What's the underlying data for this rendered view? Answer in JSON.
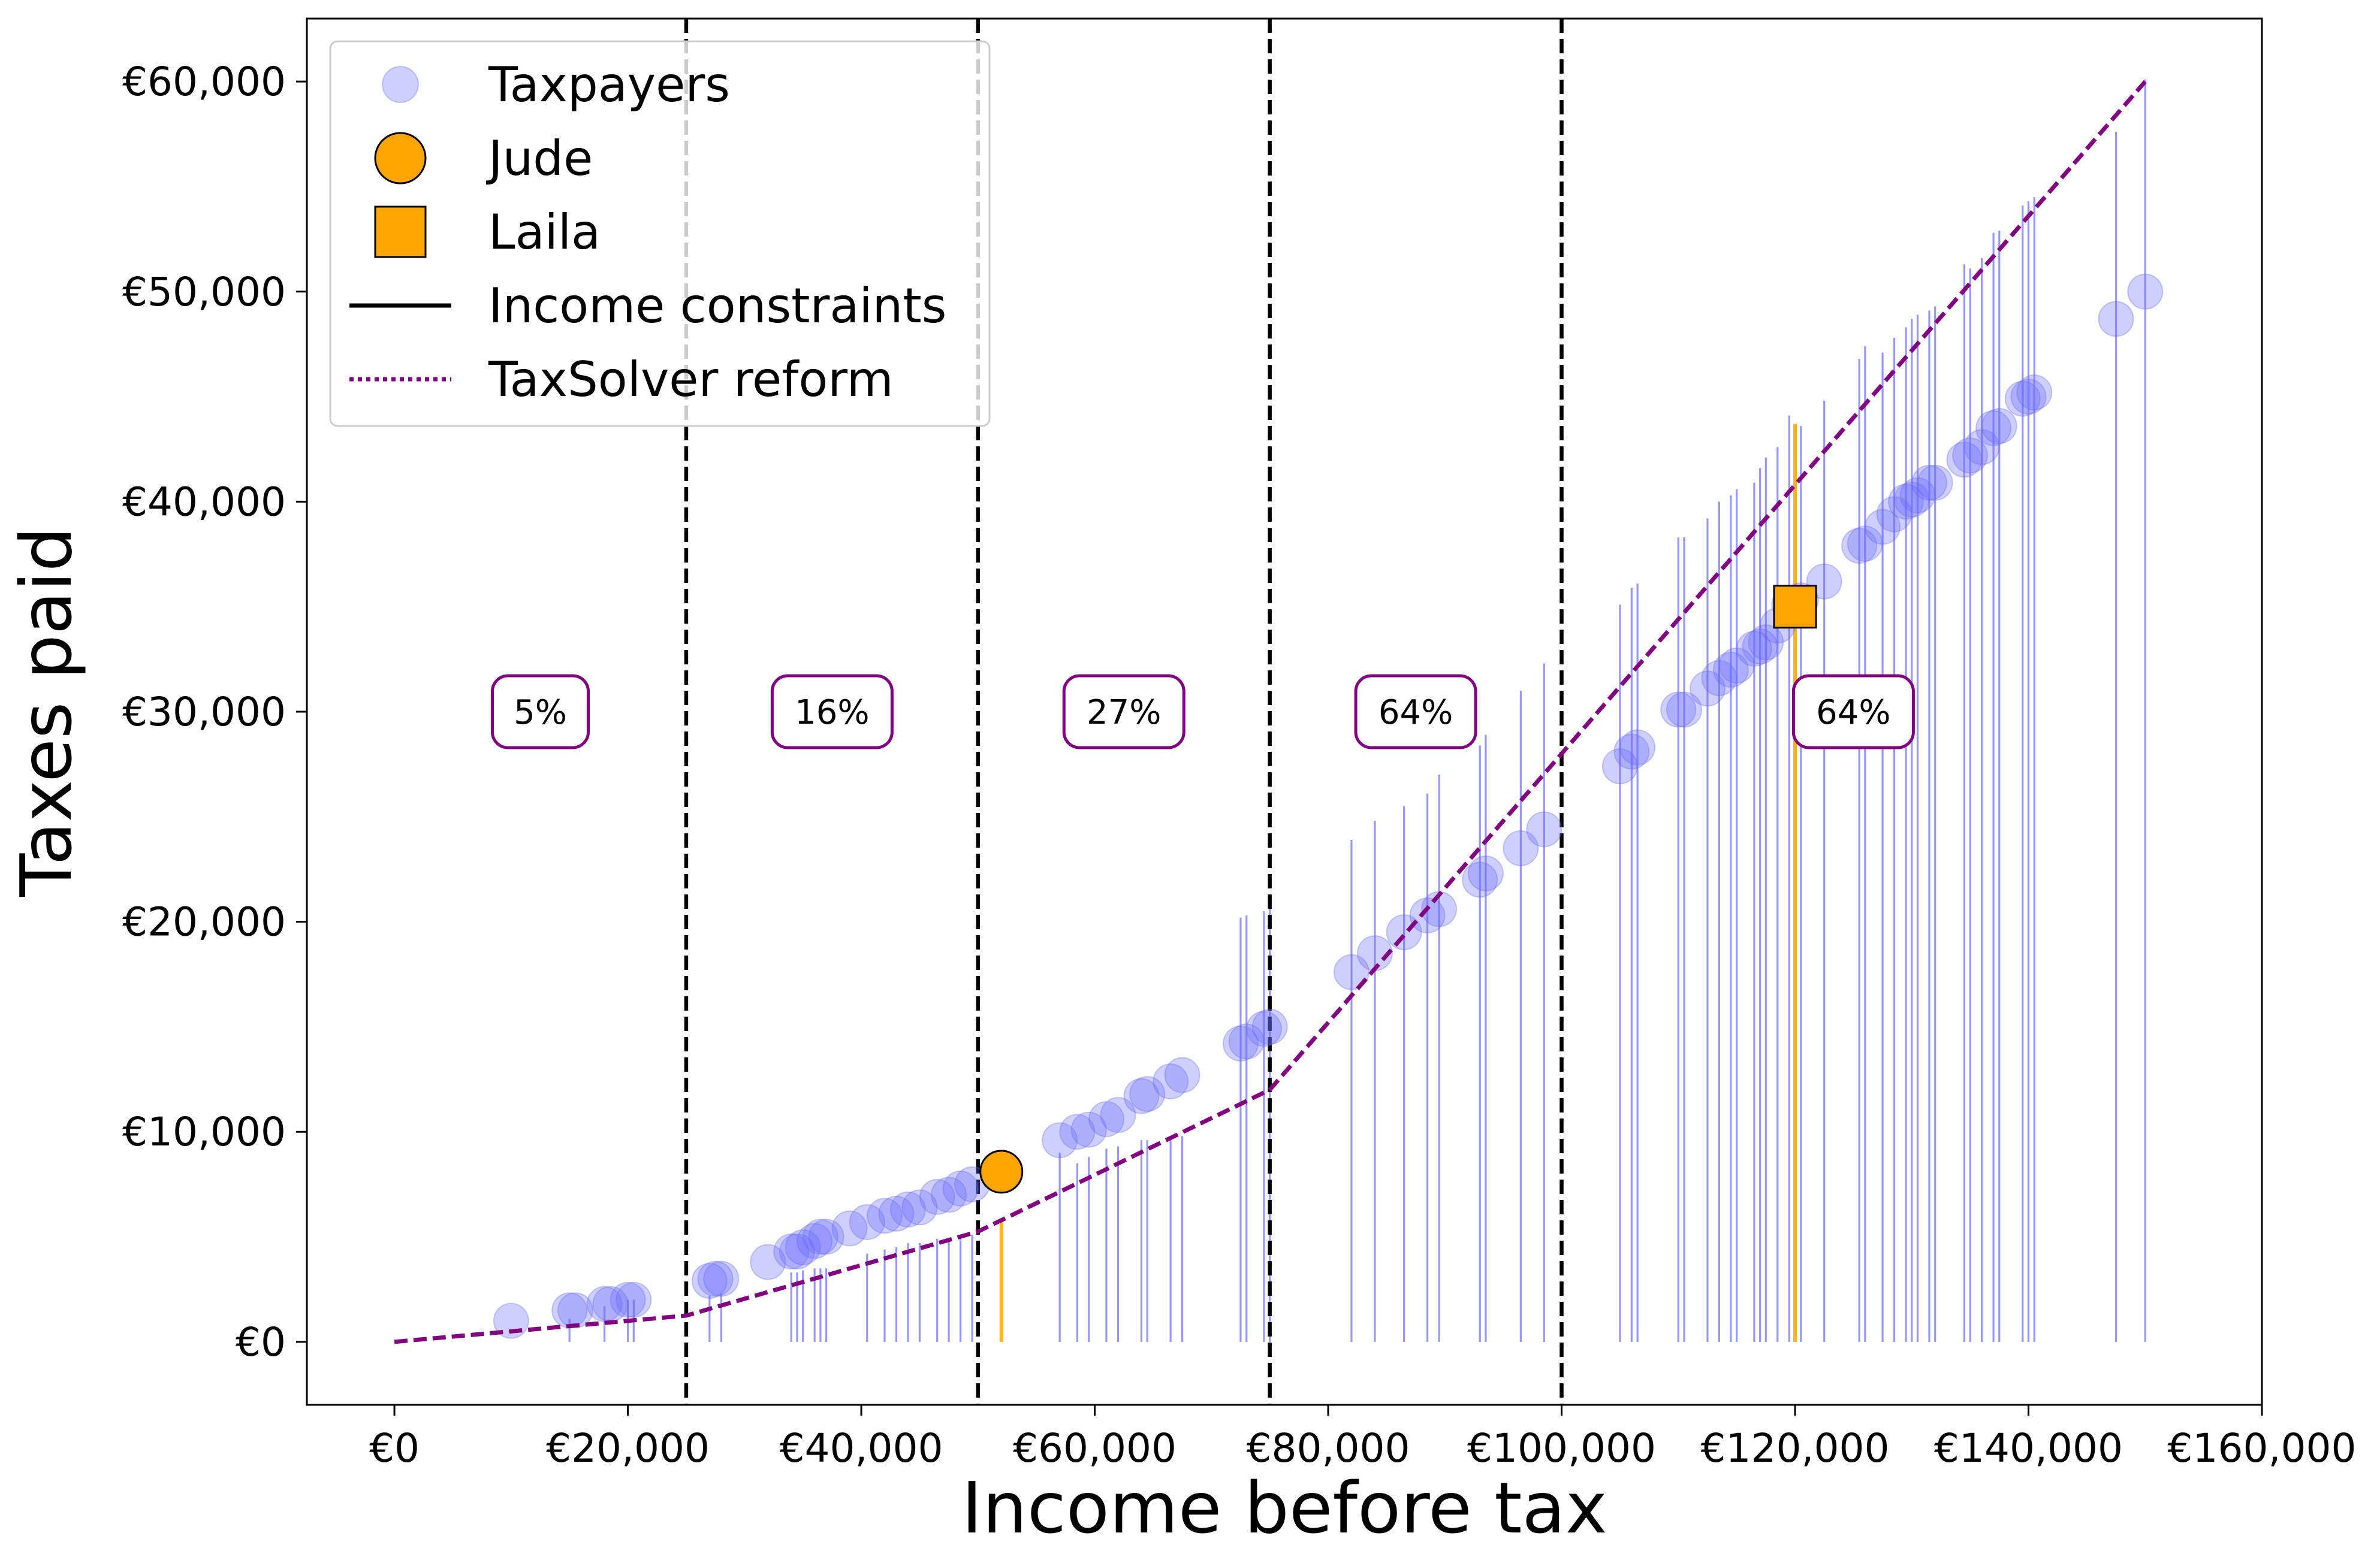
{
  "chart_data": {
    "type": "scatter",
    "xlabel": "Income before tax",
    "ylabel": "Taxes paid",
    "xlim": [
      -7500,
      160000
    ],
    "ylim": [
      -3000,
      63000
    ],
    "x_ticks": [
      0,
      20000,
      40000,
      60000,
      80000,
      100000,
      120000,
      140000,
      160000
    ],
    "x_tick_labels": [
      "€0",
      "€20,000",
      "€40,000",
      "€60,000",
      "€80,000",
      "€100,000",
      "€120,000",
      "€140,000",
      "€160,000"
    ],
    "y_ticks": [
      0,
      10000,
      20000,
      30000,
      40000,
      50000,
      60000
    ],
    "y_tick_labels": [
      "€0",
      "€10,000",
      "€20,000",
      "€30,000",
      "€40,000",
      "€50,000",
      "€60,000"
    ],
    "grid": false,
    "legend_position": "top-left",
    "legend": [
      {
        "label": "Taxpayers",
        "marker": "circle",
        "color": "#6b6bff"
      },
      {
        "label": "Jude",
        "marker": "circle",
        "color": "#ffa500"
      },
      {
        "label": "Laila",
        "marker": "square",
        "color": "#ffa500"
      },
      {
        "label": "Income constraints",
        "marker": "solid-line",
        "color": "#000000"
      },
      {
        "label": "TaxSolver reform",
        "marker": "dotted-line",
        "color": "#800080"
      }
    ],
    "bracket_boundaries": [
      25000,
      50000,
      75000,
      100000
    ],
    "bracket_rates": [
      {
        "x": 12500,
        "y": 30000,
        "label": "5%"
      },
      {
        "x": 37500,
        "y": 30000,
        "label": "16%"
      },
      {
        "x": 62500,
        "y": 30000,
        "label": "27%"
      },
      {
        "x": 87500,
        "y": 30000,
        "label": "64%"
      },
      {
        "x": 125000,
        "y": 30000,
        "label": "64%"
      }
    ],
    "reform": {
      "x": [
        0,
        25000,
        50000,
        75000,
        100000,
        150000
      ],
      "y": [
        0,
        1250,
        5250,
        12000,
        28000,
        60000
      ]
    },
    "taxpayers": {
      "x": [
        10000,
        15000,
        15500,
        18000,
        18500,
        20000,
        20500,
        27000,
        27500,
        28000,
        32000,
        34000,
        34500,
        35000,
        36000,
        36500,
        37000,
        39000,
        40500,
        42000,
        43000,
        44000,
        45000,
        46500,
        47500,
        48500,
        49500,
        57000,
        58500,
        59500,
        61000,
        62000,
        64000,
        64500,
        66500,
        67500,
        72500,
        73000,
        74500,
        75000,
        82000,
        84000,
        86500,
        88500,
        89500,
        93000,
        93500,
        96500,
        98500,
        105000,
        106000,
        106500,
        110000,
        110500,
        112500,
        113500,
        114500,
        115000,
        116500,
        117000,
        117500,
        118500,
        119500,
        120500,
        122500,
        125500,
        126000,
        127500,
        128500,
        129500,
        130000,
        130500,
        131500,
        132000,
        134500,
        135000,
        136000,
        137000,
        137500,
        139500,
        140000,
        140500,
        147500,
        150000
      ],
      "y": [
        1000,
        1500,
        1500,
        1800,
        1800,
        2000,
        2000,
        2900,
        3000,
        3000,
        3800,
        4300,
        4300,
        4500,
        4800,
        5000,
        5000,
        5400,
        5700,
        6000,
        6100,
        6300,
        6400,
        6900,
        7000,
        7300,
        7500,
        9600,
        10000,
        10100,
        10600,
        10800,
        11700,
        11800,
        12400,
        12700,
        14200,
        14300,
        14900,
        15000,
        17600,
        18500,
        19500,
        20300,
        20600,
        22000,
        22300,
        23500,
        24400,
        27400,
        28100,
        28300,
        30100,
        30100,
        31100,
        31600,
        32000,
        32200,
        33000,
        33100,
        33300,
        34100,
        35100,
        35300,
        36200,
        37900,
        38000,
        38800,
        39400,
        40000,
        40100,
        40300,
        40900,
        40900,
        42000,
        42200,
        42600,
        43500,
        43600,
        44900,
        45000,
        45200,
        48700,
        50000
      ],
      "constraint_top": [
        null,
        1100,
        null,
        1700,
        null,
        2000,
        2000,
        2200,
        null,
        2300,
        null,
        3300,
        3300,
        3400,
        3500,
        3500,
        3500,
        null,
        4200,
        4400,
        4500,
        4700,
        4700,
        4900,
        4900,
        5100,
        5100,
        9000,
        8500,
        8800,
        9200,
        9300,
        9600,
        9600,
        9800,
        9800,
        20200,
        20300,
        20500,
        21000,
        23900,
        24800,
        25500,
        26100,
        27000,
        28400,
        28900,
        31000,
        32300,
        35100,
        35900,
        36100,
        38300,
        38300,
        39200,
        40000,
        40300,
        40600,
        40900,
        41600,
        42100,
        42600,
        44100,
        43600,
        44800,
        46800,
        47400,
        47100,
        47800,
        48300,
        48700,
        48900,
        49100,
        49300,
        51300,
        51100,
        51600,
        52800,
        52900,
        54100,
        54300,
        54500,
        57600,
        60100
      ]
    },
    "highlighted": [
      {
        "name": "Jude",
        "x": 52000,
        "y": 8100,
        "marker": "circle",
        "constraint_top": 5700
      },
      {
        "name": "Laila",
        "x": 120000,
        "y": 35000,
        "marker": "square",
        "constraint_top": 43700
      }
    ]
  }
}
